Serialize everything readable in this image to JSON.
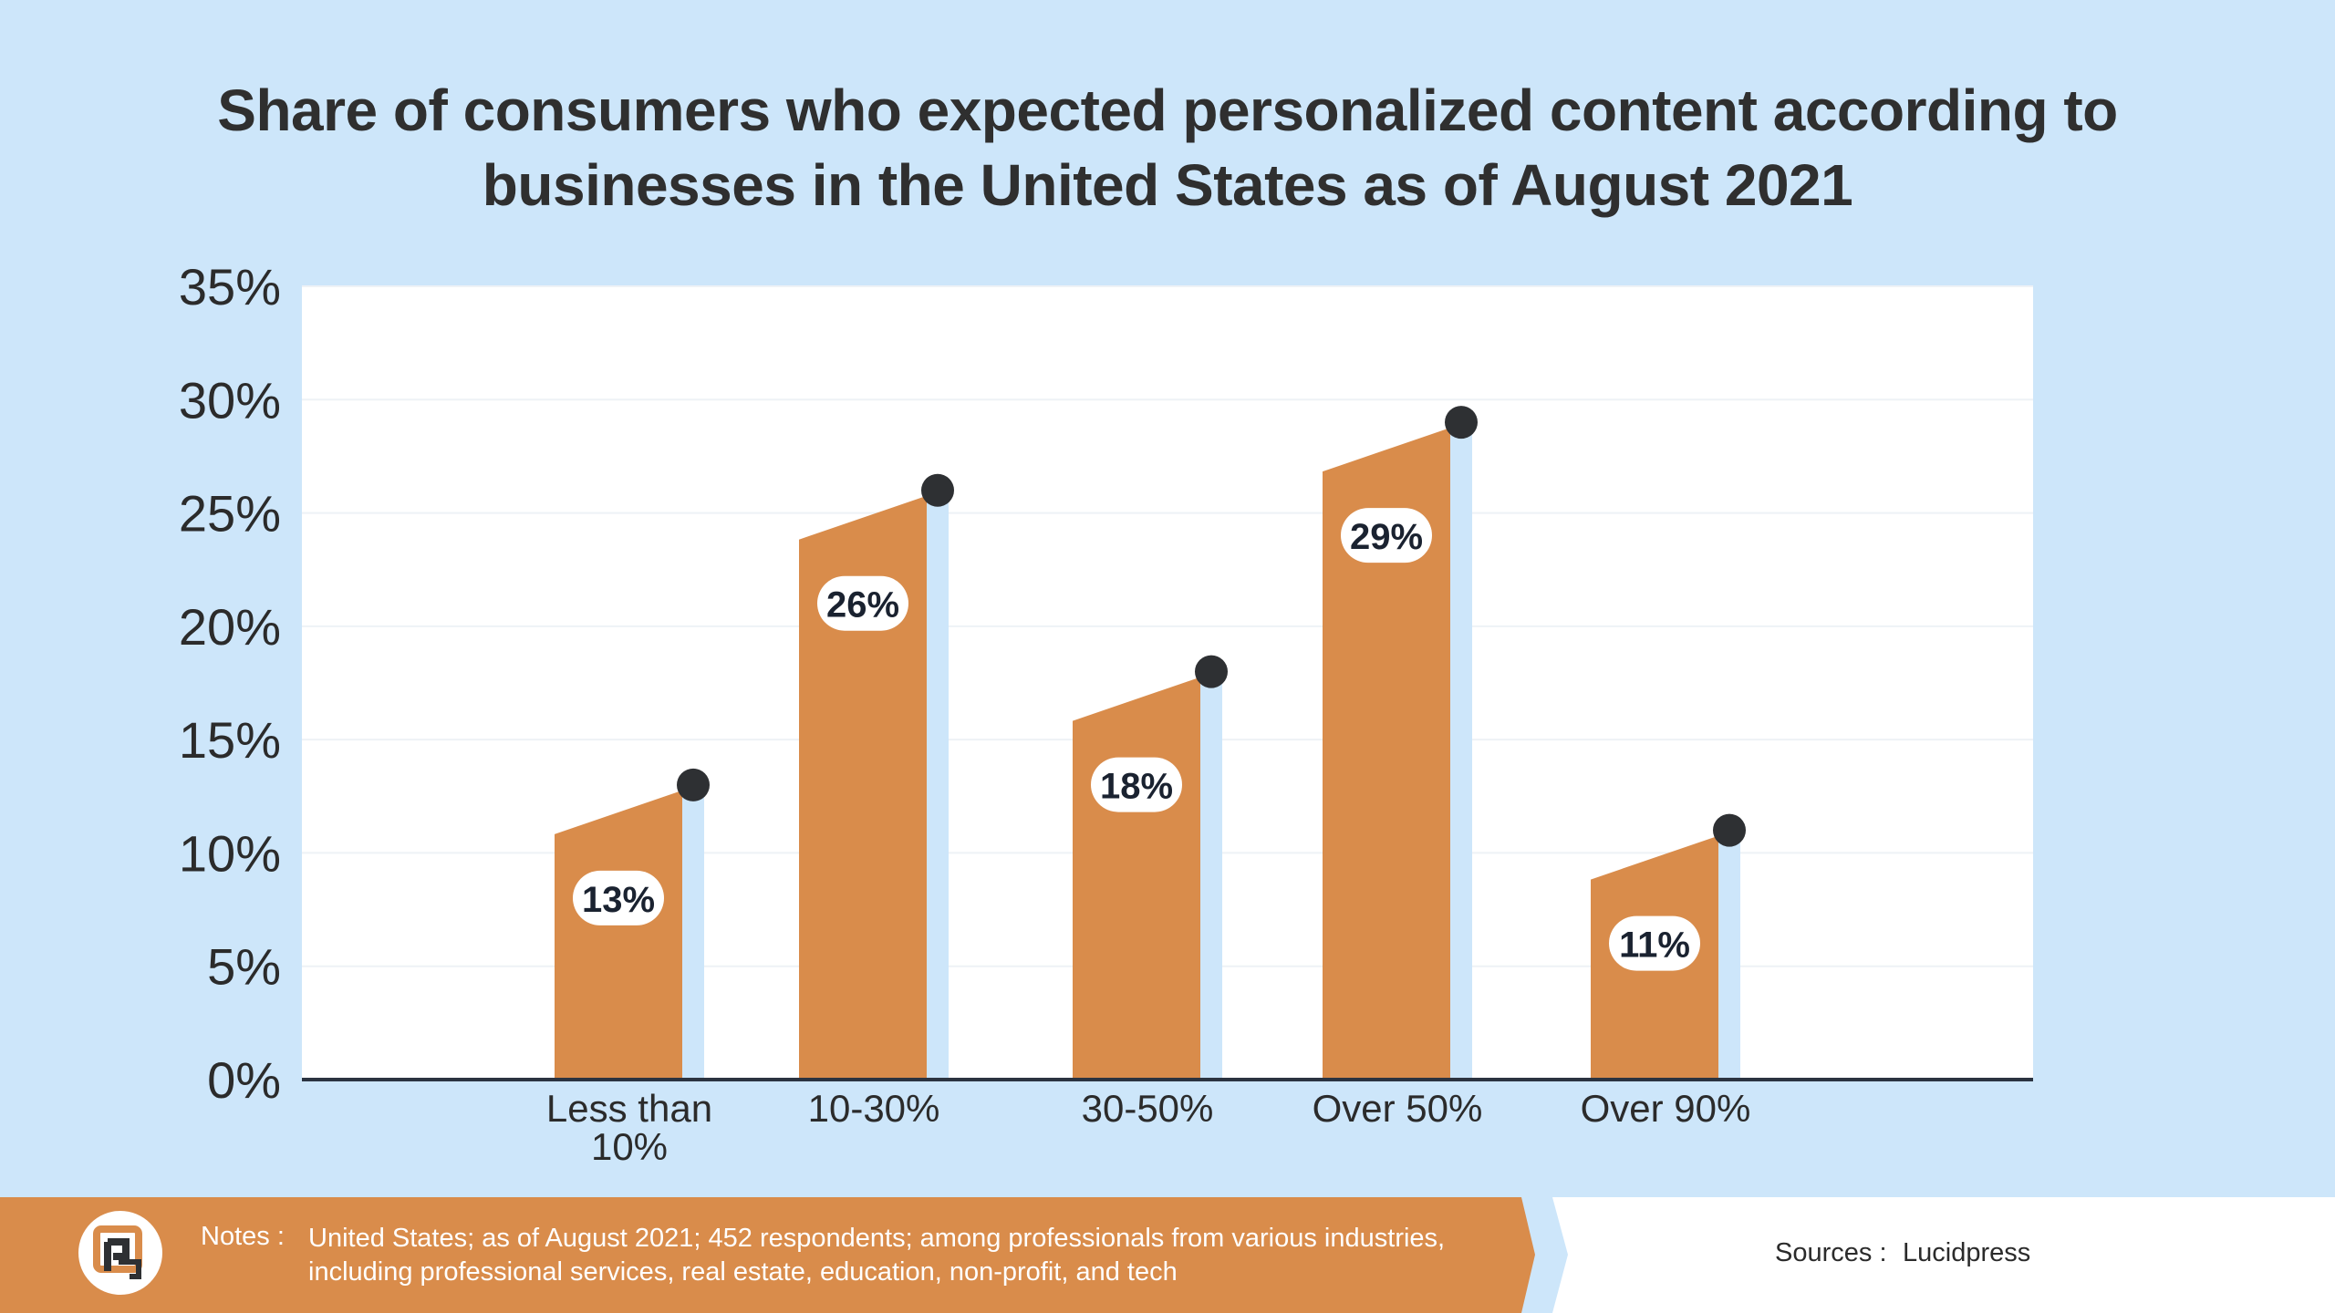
{
  "chart_data": {
    "type": "bar",
    "title": "Share of consumers who expected personalized content according to businesses in the United States as of August 2021",
    "categories": [
      "Less than 10%",
      "10-30%",
      "30-50%",
      "Over 50%",
      "Over 90%"
    ],
    "category_lines": [
      [
        "Less than",
        "10%"
      ],
      [
        "10-30%"
      ],
      [
        "30-50%"
      ],
      [
        "Over 50%"
      ],
      [
        "Over 90%"
      ]
    ],
    "values": [
      13,
      26,
      18,
      29,
      11
    ],
    "value_labels": [
      "13%",
      "26%",
      "18%",
      "29%",
      "11%"
    ],
    "yticks": [
      0,
      5,
      10,
      15,
      20,
      25,
      30,
      35
    ],
    "ytick_labels": [
      "0%",
      "5%",
      "10%",
      "15%",
      "20%",
      "25%",
      "30%",
      "35%"
    ],
    "ylim": [
      0,
      35
    ],
    "xlabel": "",
    "ylabel": "",
    "grid": true,
    "bar_color": "#d98c4b",
    "shadow_color": "#cde6fa",
    "marker_color": "#2e3033"
  },
  "footer": {
    "notes_label": "Notes :",
    "notes_text": "United States; as of August 2021; 452 respondents; among professionals from various industries, including professional services, real estate, education, non-profit, and tech",
    "sources_label": "Sources :",
    "sources_value": "Lucidpress"
  },
  "colors": {
    "background": "#cde6fa",
    "accent": "#d98c4b",
    "title": "#2f2f2f"
  }
}
